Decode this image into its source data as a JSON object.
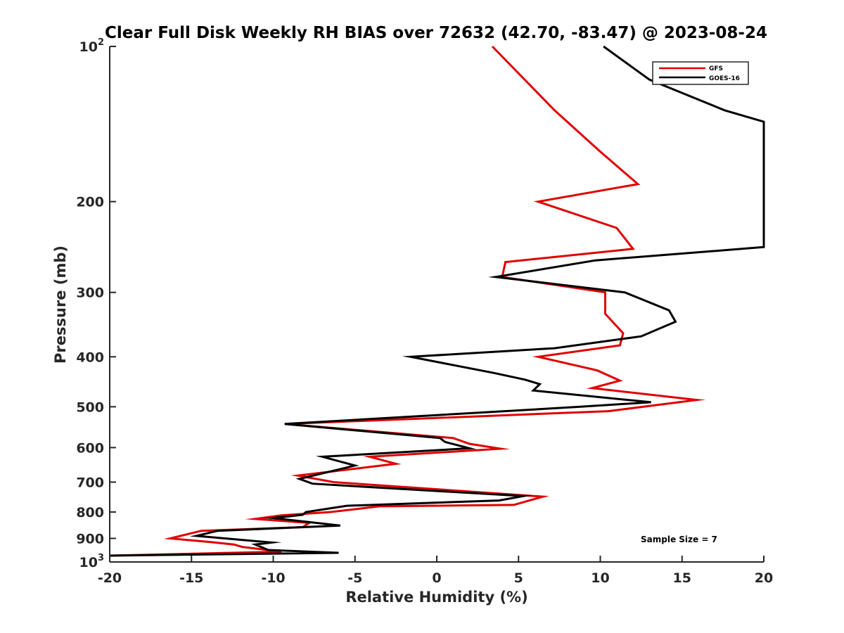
{
  "chart_data": {
    "type": "line",
    "title": "Clear Full Disk Weekly RH BIAS over 72632 (42.70, -83.47) @ 2023-08-24",
    "xlabel": "Relative Humidity (%)",
    "ylabel": "Pressure (mb)",
    "xlim": [
      -20,
      20
    ],
    "ylim": [
      1000,
      100
    ],
    "yscale": "log",
    "xticks": [
      -20,
      -15,
      -10,
      -5,
      0,
      5,
      10,
      15,
      20
    ],
    "x_tick_labels": [
      "-20",
      "-15",
      "-10",
      "-5",
      "0",
      "5",
      "10",
      "15",
      "20"
    ],
    "yticks": [
      100,
      200,
      300,
      400,
      500,
      600,
      700,
      800,
      900,
      1000
    ],
    "y_tick_labels": [
      {
        "base": "10",
        "exp": "2"
      },
      {
        "base": "200",
        "exp": ""
      },
      {
        "base": "300",
        "exp": ""
      },
      {
        "base": "400",
        "exp": ""
      },
      {
        "base": "500",
        "exp": ""
      },
      {
        "base": "600",
        "exp": ""
      },
      {
        "base": "700",
        "exp": ""
      },
      {
        "base": "800",
        "exp": ""
      },
      {
        "base": "900",
        "exp": ""
      },
      {
        "base": "10",
        "exp": "3"
      }
    ],
    "grid": false,
    "legend_position": "top-right",
    "annotation": "Sample Size = 7",
    "series": [
      {
        "name": "GFS",
        "color": "#e00000",
        "points": [
          [
            3.4,
            100
          ],
          [
            7.2,
            133
          ],
          [
            10.0,
            160
          ],
          [
            12.3,
            185
          ],
          [
            6.2,
            200
          ],
          [
            11.0,
            225
          ],
          [
            12.0,
            247
          ],
          [
            4.2,
            262
          ],
          [
            4.0,
            280
          ],
          [
            10.3,
            300
          ],
          [
            10.3,
            330
          ],
          [
            11.4,
            360
          ],
          [
            11.2,
            380
          ],
          [
            6.2,
            400
          ],
          [
            9.8,
            425
          ],
          [
            11.2,
            445
          ],
          [
            9.5,
            460
          ],
          [
            15.9,
            485
          ],
          [
            10.5,
            510
          ],
          [
            -9.3,
            540
          ],
          [
            1.0,
            575
          ],
          [
            2.0,
            590
          ],
          [
            3.9,
            603
          ],
          [
            -4.1,
            625
          ],
          [
            -2.5,
            645
          ],
          [
            -8.5,
            680
          ],
          [
            -6.3,
            700
          ],
          [
            6.5,
            747
          ],
          [
            4.7,
            775
          ],
          [
            -3.5,
            780
          ],
          [
            -6.5,
            800
          ],
          [
            -9.5,
            812
          ],
          [
            -11.1,
            825
          ],
          [
            -7.8,
            840
          ],
          [
            -8.2,
            856
          ],
          [
            -14.4,
            870
          ],
          [
            -16.3,
            900
          ],
          [
            -13.8,
            915
          ],
          [
            -12.4,
            925
          ],
          [
            -11.9,
            935
          ],
          [
            -9.5,
            955
          ],
          [
            -20.0,
            972
          ]
        ]
      },
      {
        "name": "GOES-16",
        "color": "#000000",
        "points": [
          [
            10.2,
            100
          ],
          [
            13.0,
            116
          ],
          [
            17.6,
            133
          ],
          [
            20.0,
            140
          ],
          [
            20.0,
            245
          ],
          [
            9.7,
            260
          ],
          [
            3.6,
            280
          ],
          [
            11.5,
            300
          ],
          [
            14.2,
            325
          ],
          [
            14.6,
            342
          ],
          [
            12.5,
            365
          ],
          [
            7.2,
            385
          ],
          [
            -1.6,
            400
          ],
          [
            3.5,
            430
          ],
          [
            5.4,
            443
          ],
          [
            6.3,
            452
          ],
          [
            5.9,
            465
          ],
          [
            13.1,
            490
          ],
          [
            8.8,
            500
          ],
          [
            -9.3,
            540
          ],
          [
            0.2,
            575
          ],
          [
            0.5,
            585
          ],
          [
            2.0,
            602
          ],
          [
            -7.0,
            625
          ],
          [
            -5.0,
            650
          ],
          [
            -8.4,
            690
          ],
          [
            -7.6,
            705
          ],
          [
            5.3,
            745
          ],
          [
            3.8,
            760
          ],
          [
            -5.5,
            778
          ],
          [
            -8.0,
            800
          ],
          [
            -8.2,
            810
          ],
          [
            -10.0,
            822
          ],
          [
            -5.9,
            850
          ],
          [
            -13.4,
            870
          ],
          [
            -14.7,
            890
          ],
          [
            -10.1,
            917
          ],
          [
            -11.1,
            925
          ],
          [
            -10.3,
            948
          ],
          [
            -6.0,
            960
          ],
          [
            -20.0,
            972
          ]
        ]
      }
    ]
  }
}
